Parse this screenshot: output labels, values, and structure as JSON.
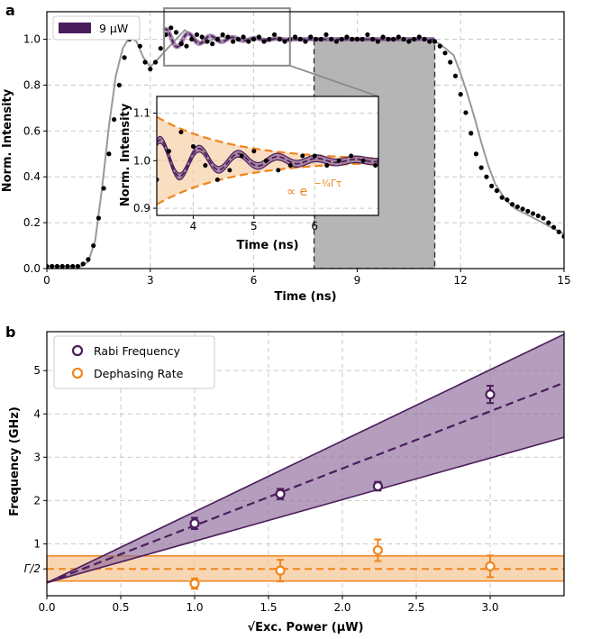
{
  "colors": {
    "purple": "#4b1d5c",
    "purple_fill": "#8e6a99",
    "orange": "#f0851c",
    "orange_fill": "#f7c89a",
    "gray": "#999999",
    "shade": "#b5b5b5"
  },
  "chart_data": [
    {
      "panel": "a",
      "type": "line",
      "xlabel": "Time (ns)",
      "ylabel": "Norm. Intensity",
      "xlim": [
        0,
        15
      ],
      "ylim": [
        0,
        1.12
      ],
      "xticks": [
        "0",
        "3",
        "6",
        "9",
        "12",
        "15"
      ],
      "yticks": [
        "0.0",
        "0.2",
        "0.4",
        "0.6",
        "0.8",
        "1.0"
      ],
      "legend": [
        "9 μW"
      ],
      "shaded_region": [
        7.75,
        11.25
      ],
      "zoom_box": {
        "x": [
          3.4,
          7.05
        ],
        "y": [
          0.885,
          1.135
        ]
      },
      "series": [
        {
          "name": "fit",
          "x": [
            0,
            1,
            1.2,
            1.4,
            1.6,
            1.8,
            2.0,
            2.2,
            2.4,
            2.6,
            2.8,
            3.0,
            3.2,
            3.5,
            4.0,
            4.5,
            5.0,
            6.0,
            7.0,
            8.0,
            9.0,
            10.0,
            11.0,
            11.4,
            11.8,
            12.0,
            12.2,
            12.4,
            12.6,
            12.8,
            13.0,
            13.3,
            13.6,
            14.0,
            14.5,
            15.0
          ],
          "y": [
            0.01,
            0.01,
            0.03,
            0.12,
            0.35,
            0.62,
            0.84,
            0.96,
            1.01,
            0.99,
            0.92,
            0.88,
            0.91,
            0.96,
            1.04,
            0.98,
            1.01,
            1.0,
            1.0,
            1.0,
            1.0,
            1.0,
            1.0,
            0.98,
            0.93,
            0.85,
            0.76,
            0.66,
            0.55,
            0.45,
            0.37,
            0.3,
            0.26,
            0.23,
            0.19,
            0.15
          ]
        },
        {
          "name": "data",
          "x": [
            0,
            0.15,
            0.3,
            0.45,
            0.6,
            0.75,
            0.9,
            1.05,
            1.2,
            1.35,
            1.5,
            1.65,
            1.8,
            1.95,
            2.1,
            2.25,
            2.4,
            2.55,
            2.7,
            2.85,
            3.0,
            3.15,
            3.3,
            3.45,
            3.6,
            3.75,
            3.9,
            4.05,
            4.2,
            4.35,
            4.5,
            4.65,
            4.8,
            4.95,
            5.1,
            5.25,
            5.4,
            5.55,
            5.7,
            5.85,
            6.0,
            6.15,
            6.3,
            6.45,
            6.6,
            6.75,
            6.9,
            7.05,
            7.2,
            7.35,
            7.5,
            7.65,
            7.8,
            7.95,
            8.1,
            8.25,
            8.4,
            8.55,
            8.7,
            8.85,
            9.0,
            9.15,
            9.3,
            9.45,
            9.6,
            9.75,
            9.9,
            10.05,
            10.2,
            10.35,
            10.5,
            10.65,
            10.8,
            10.95,
            11.1,
            11.25,
            11.4,
            11.55,
            11.7,
            11.85,
            12.0,
            12.15,
            12.3,
            12.45,
            12.6,
            12.75,
            12.9,
            13.05,
            13.2,
            13.35,
            13.5,
            13.65,
            13.8,
            13.95,
            14.1,
            14.25,
            14.4,
            14.55,
            14.7,
            14.85,
            15.0
          ],
          "y": [
            0.01,
            0.01,
            0.01,
            0.01,
            0.01,
            0.01,
            0.01,
            0.02,
            0.04,
            0.1,
            0.22,
            0.35,
            0.5,
            0.65,
            0.8,
            0.92,
            1.0,
            1.01,
            0.97,
            0.9,
            0.87,
            0.9,
            0.96,
            1.02,
            1.05,
            1.03,
            0.98,
            0.97,
            1.0,
            1.02,
            1.01,
            0.99,
            0.98,
            1.0,
            1.02,
            1.01,
            0.99,
            1.0,
            1.01,
            0.99,
            1.0,
            1.01,
            0.99,
            1.0,
            1.02,
            1.0,
            0.99,
            1.0,
            1.01,
            1.0,
            0.99,
            1.01,
            1.0,
            1.0,
            1.02,
            1.0,
            0.99,
            1.0,
            1.01,
            1.0,
            1.0,
            1.0,
            1.02,
            1.0,
            0.99,
            1.01,
            1.0,
            1.0,
            1.01,
            1.0,
            0.99,
            1.0,
            1.01,
            1.0,
            0.99,
            0.99,
            0.97,
            0.94,
            0.9,
            0.84,
            0.76,
            0.68,
            0.59,
            0.5,
            0.44,
            0.4,
            0.36,
            0.34,
            0.31,
            0.3,
            0.28,
            0.27,
            0.26,
            0.25,
            0.24,
            0.23,
            0.22,
            0.2,
            0.18,
            0.16,
            0.14
          ]
        }
      ],
      "inset": {
        "xlabel": "Time (ns)",
        "ylabel": "Norm. Intensity",
        "xlim": [
          3.4,
          7.05
        ],
        "ylim": [
          0.885,
          1.135
        ],
        "xticks": [
          "4",
          "5",
          "6"
        ],
        "yticks": [
          "0.9",
          "1.0",
          "1.1"
        ],
        "annotation": "∝ e",
        "annotation_exp": "−¾Γτ",
        "envelope": {
          "center": 1.0,
          "amp": 0.092,
          "decay": 0.8,
          "t0": 3.4
        },
        "fit": {
          "amp": 0.046,
          "freq": 1.55,
          "decay": 0.85,
          "phase": -0.6
        },
        "data_x": [
          3.4,
          3.6,
          3.8,
          4.0,
          4.2,
          4.4,
          4.6,
          4.8,
          5.0,
          5.2,
          5.4,
          5.6,
          5.8,
          6.0,
          6.2,
          6.4,
          6.6,
          6.8,
          7.0
        ],
        "data_y": [
          0.96,
          1.02,
          1.06,
          1.03,
          0.99,
          0.96,
          0.98,
          1.01,
          1.02,
          1.0,
          0.98,
          0.99,
          1.01,
          1.01,
          0.99,
          1.0,
          1.01,
          1.0,
          0.99
        ]
      }
    },
    {
      "panel": "b",
      "type": "scatter",
      "xlabel": "√Exc. Power (μW)",
      "ylabel": "Frequency  (GHz)",
      "xlim": [
        0,
        3.5
      ],
      "ylim": [
        -0.2,
        5.9
      ],
      "xticks": [
        "0.0",
        "0.5",
        "1.0",
        "1.5",
        "2.0",
        "2.5",
        "3.0"
      ],
      "yticks": [
        "1",
        "2",
        "3",
        "4",
        "5"
      ],
      "gamma_tick": "Γ/2",
      "gamma_half": 0.42,
      "legend": [
        "Rabi Frequency",
        "Dephasing Rate"
      ],
      "rabi_line": {
        "intercept": 0.1,
        "slope": 1.32,
        "upper_slope": 1.64,
        "lower_slope": 0.96
      },
      "dephasing_band": {
        "center": 0.42,
        "low": 0.14,
        "high": 0.72
      },
      "series": [
        {
          "name": "Rabi Frequency",
          "x": [
            1.0,
            1.58,
            2.24,
            3.0
          ],
          "y": [
            1.47,
            2.15,
            2.33,
            4.45
          ],
          "err": [
            0.13,
            0.12,
            0.1,
            0.2
          ]
        },
        {
          "name": "Dephasing Rate",
          "x": [
            1.0,
            1.58,
            2.24,
            3.0
          ],
          "y": [
            0.08,
            0.38,
            0.85,
            0.48
          ],
          "err": [
            0.12,
            0.25,
            0.25,
            0.25
          ]
        }
      ]
    }
  ]
}
